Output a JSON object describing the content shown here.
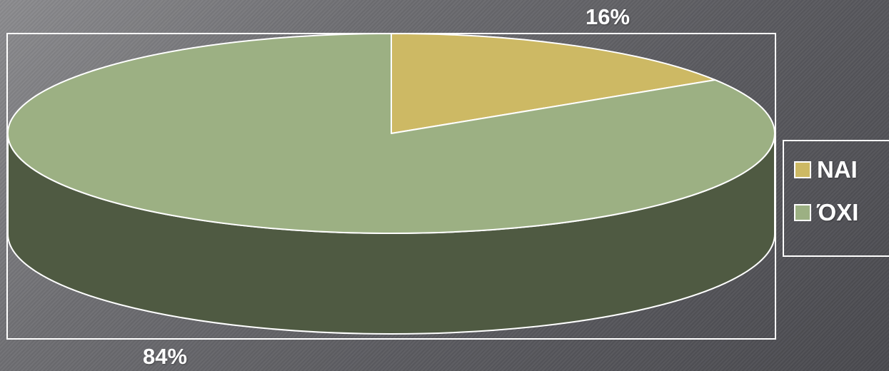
{
  "chart_data": {
    "type": "pie",
    "categories": [
      "ΝΑΙ",
      "ΌΧΙ"
    ],
    "values": [
      16,
      84
    ],
    "data_labels": [
      "16%",
      "84%"
    ],
    "colors": [
      "#cdb964",
      "#9cb083"
    ],
    "side_colors": [
      "#8a7a40",
      "#4f5a42"
    ],
    "style": "3d",
    "legend_position": "right"
  }
}
